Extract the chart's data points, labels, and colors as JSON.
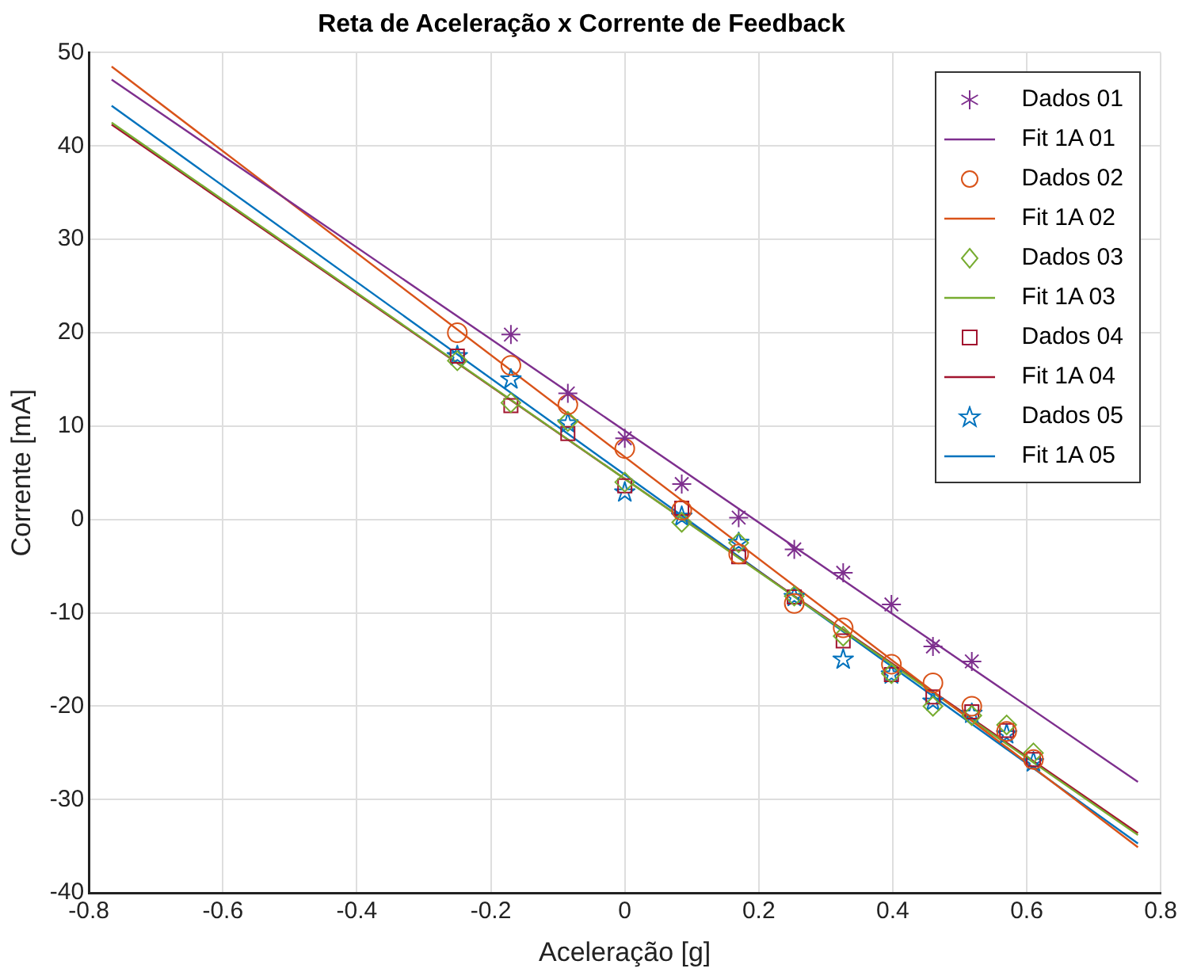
{
  "chart_data": {
    "type": "scatter",
    "title": "Reta de Aceleração x Corrente de Feedback",
    "xlabel": "Aceleração [g]",
    "ylabel": "Corrente [mA]",
    "xlim": [
      -0.8,
      0.8
    ],
    "xticks": [
      -0.8,
      -0.6,
      -0.4,
      -0.2,
      0,
      0.2,
      0.4,
      0.6,
      0.8
    ],
    "ylim": [
      -40,
      50
    ],
    "yticks": [
      -40,
      -30,
      -20,
      -10,
      0,
      10,
      20,
      30,
      40,
      50
    ],
    "grid": true,
    "legend": "top right",
    "series": [
      {
        "name": "Dados 01",
        "type": "scatter",
        "marker": "cross",
        "color": "#7e2f8e",
        "x": [
          -0.17,
          -0.085,
          0,
          0.085,
          0.17,
          0.253,
          0.326,
          0.398,
          0.46,
          0.518
        ],
        "values": [
          19.8,
          13.5,
          8.7,
          3.8,
          0.2,
          -3.2,
          -5.7,
          -9.1,
          -13.6,
          -15.2
        ]
      },
      {
        "name": "Fit 1A 01",
        "type": "line",
        "marker": "none",
        "color": "#7e2f8e",
        "x": [
          -0.766,
          0.766
        ],
        "values": [
          47.1,
          -28.1
        ]
      },
      {
        "name": "Dados 02",
        "type": "scatter",
        "marker": "circle",
        "color": "#d95319",
        "x": [
          -0.25,
          -0.17,
          -0.085,
          0,
          0.085,
          0.17,
          0.253,
          0.326,
          0.398,
          0.46,
          0.518,
          0.57,
          0.61
        ],
        "values": [
          20,
          16.5,
          12.3,
          7.6,
          1,
          -3.7,
          -9,
          -11.6,
          -15.5,
          -17.5,
          -20,
          -22.7,
          -25.7
        ]
      },
      {
        "name": "Fit 1A 02",
        "type": "line",
        "marker": "none",
        "color": "#d95319",
        "x": [
          -0.766,
          0.766
        ],
        "values": [
          48.5,
          -35.1
        ]
      },
      {
        "name": "Dados 03",
        "type": "scatter",
        "marker": "diamond",
        "color": "#77ac30",
        "x": [
          -0.25,
          -0.17,
          -0.085,
          0,
          0.085,
          0.17,
          0.253,
          0.326,
          0.398,
          0.46,
          0.518,
          0.57,
          0.61
        ],
        "values": [
          17,
          12.5,
          10.5,
          4,
          -0.3,
          -2.5,
          -8.2,
          -12.5,
          -16.5,
          -20,
          -21,
          -22,
          -25
        ]
      },
      {
        "name": "Fit 1A 03",
        "type": "line",
        "marker": "none",
        "color": "#77ac30",
        "x": [
          -0.766,
          0.766
        ],
        "values": [
          42.5,
          -33.8
        ]
      },
      {
        "name": "Dados 04",
        "type": "scatter",
        "marker": "square",
        "color": "#a2142f",
        "x": [
          -0.25,
          -0.17,
          -0.085,
          0,
          0.085,
          0.17,
          0.253,
          0.326,
          0.398,
          0.46,
          0.518,
          0.57,
          0.61
        ],
        "values": [
          17.5,
          12.2,
          9.2,
          3.6,
          1.2,
          -4,
          -8.3,
          -13,
          -16.6,
          -19,
          -20.6,
          -22.6,
          -25.7
        ]
      },
      {
        "name": "Fit 1A 04",
        "type": "line",
        "marker": "none",
        "color": "#a2142f",
        "x": [
          -0.766,
          0.766
        ],
        "values": [
          42.3,
          -33.6
        ]
      },
      {
        "name": "Dados 05",
        "type": "scatter",
        "marker": "star",
        "color": "#0072bd",
        "x": [
          -0.25,
          -0.17,
          -0.085,
          0,
          0.085,
          0.17,
          0.253,
          0.326,
          0.398,
          0.46,
          0.518,
          0.57,
          0.61
        ],
        "values": [
          17.5,
          15,
          10.3,
          2.9,
          0.3,
          -2.5,
          -8.3,
          -15,
          -16.6,
          -19.5,
          -20.8,
          -23,
          -26
        ]
      },
      {
        "name": "Fit 1A 05",
        "type": "line",
        "marker": "none",
        "color": "#0072bd",
        "x": [
          -0.766,
          0.766
        ],
        "values": [
          44.3,
          -34.7
        ]
      }
    ]
  }
}
